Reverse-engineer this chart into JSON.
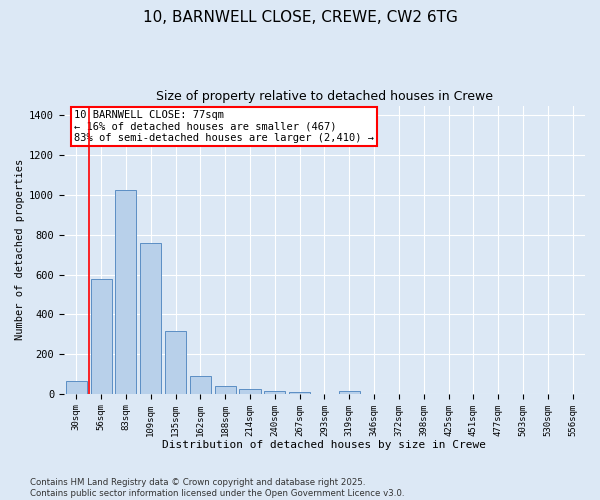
{
  "title1": "10, BARNWELL CLOSE, CREWE, CW2 6TG",
  "title2": "Size of property relative to detached houses in Crewe",
  "xlabel": "Distribution of detached houses by size in Crewe",
  "ylabel": "Number of detached properties",
  "categories": [
    "30sqm",
    "56sqm",
    "83sqm",
    "109sqm",
    "135sqm",
    "162sqm",
    "188sqm",
    "214sqm",
    "240sqm",
    "267sqm",
    "293sqm",
    "319sqm",
    "346sqm",
    "372sqm",
    "398sqm",
    "425sqm",
    "451sqm",
    "477sqm",
    "503sqm",
    "530sqm",
    "556sqm"
  ],
  "values": [
    65,
    580,
    1025,
    760,
    315,
    90,
    38,
    22,
    15,
    10,
    0,
    12,
    0,
    0,
    0,
    0,
    0,
    0,
    0,
    0,
    0
  ],
  "bar_color": "#b8d0ea",
  "bar_edge_color": "#5b8ec4",
  "vline_color": "red",
  "vline_x_index": 0.5,
  "annotation_text": "10 BARNWELL CLOSE: 77sqm\n← 16% of detached houses are smaller (467)\n83% of semi-detached houses are larger (2,410) →",
  "ylim": [
    0,
    1450
  ],
  "yticks": [
    0,
    200,
    400,
    600,
    800,
    1000,
    1200,
    1400
  ],
  "bg_color": "#dce8f5",
  "footer_text": "Contains HM Land Registry data © Crown copyright and database right 2025.\nContains public sector information licensed under the Open Government Licence v3.0."
}
